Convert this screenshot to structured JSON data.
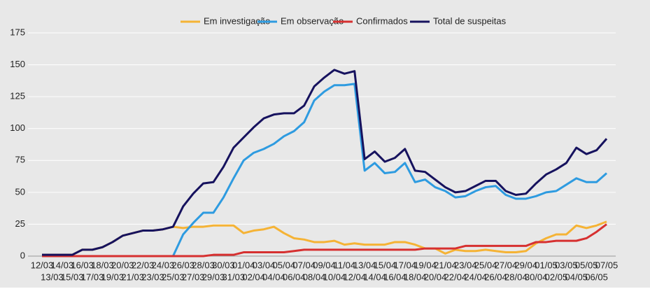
{
  "chart_data": {
    "type": "line",
    "categories": [
      "12/03",
      "13/03",
      "14/03",
      "15/03",
      "16/03",
      "17/03",
      "18/03",
      "19/03",
      "20/03",
      "21/03",
      "22/03",
      "23/03",
      "24/03",
      "25/03",
      "26/03",
      "27/03",
      "28/03",
      "29/03",
      "30/03",
      "31/03",
      "01/04",
      "02/04",
      "03/04",
      "04/04",
      "05/04",
      "06/04",
      "07/04",
      "08/04",
      "09/04",
      "10/04",
      "11/04",
      "12/04",
      "13/04",
      "14/04",
      "15/04",
      "16/04",
      "17/04",
      "18/04",
      "19/04",
      "20/04",
      "21/04",
      "22/04",
      "23/04",
      "24/04",
      "25/04",
      "26/04",
      "27/04",
      "28/04",
      "29/04",
      "30/04",
      "01/05",
      "02/05",
      "03/05",
      "04/05",
      "05/05",
      "06/05",
      "07/05"
    ],
    "series": [
      {
        "name": "Em investigação",
        "color": "#f5b335",
        "values": [
          1,
          1,
          1,
          1,
          5,
          5,
          7,
          11,
          16,
          18,
          20,
          20,
          21,
          23,
          22,
          23,
          23,
          24,
          24,
          24,
          18,
          20,
          21,
          23,
          18,
          14,
          13,
          11,
          11,
          12,
          9,
          10,
          9,
          9,
          9,
          11,
          11,
          9,
          6,
          6,
          2,
          5,
          4,
          4,
          5,
          4,
          3,
          3,
          4,
          10,
          14,
          17,
          17,
          24,
          22,
          24,
          27
        ]
      },
      {
        "name": "Em observação",
        "color": "#2e9be0",
        "values": [
          0,
          0,
          0,
          0,
          0,
          0,
          0,
          0,
          0,
          0,
          0,
          0,
          0,
          0,
          17,
          26,
          34,
          34,
          46,
          61,
          75,
          81,
          84,
          88,
          94,
          98,
          105,
          122,
          129,
          134,
          134,
          135,
          67,
          73,
          65,
          66,
          73,
          58,
          60,
          54,
          51,
          46,
          47,
          51,
          54,
          55,
          48,
          45,
          45,
          47,
          50,
          51,
          56,
          61,
          58,
          58,
          65
        ]
      },
      {
        "name": "Confirmados",
        "color": "#d63030",
        "values": [
          0,
          0,
          0,
          0,
          0,
          0,
          0,
          0,
          0,
          0,
          0,
          0,
          0,
          0,
          0,
          0,
          0,
          1,
          1,
          1,
          3,
          3,
          3,
          3,
          3,
          4,
          5,
          5,
          5,
          5,
          5,
          5,
          5,
          5,
          5,
          5,
          5,
          5,
          6,
          6,
          6,
          6,
          8,
          8,
          8,
          8,
          8,
          8,
          8,
          11,
          11,
          12,
          12,
          12,
          14,
          19,
          25
        ]
      },
      {
        "name": "Total de suspeitas",
        "color": "#16125e",
        "values": [
          1,
          1,
          1,
          1,
          5,
          5,
          7,
          11,
          16,
          18,
          20,
          20,
          21,
          23,
          39,
          49,
          57,
          58,
          70,
          85,
          93,
          101,
          108,
          111,
          112,
          112,
          118,
          133,
          140,
          146,
          143,
          145,
          76,
          82,
          74,
          77,
          84,
          67,
          66,
          60,
          54,
          50,
          51,
          55,
          59,
          59,
          51,
          48,
          49,
          57,
          64,
          68,
          73,
          85,
          80,
          83,
          92
        ]
      }
    ],
    "ylim": [
      0,
      175
    ],
    "yticks": [
      0,
      25,
      50,
      75,
      100,
      125,
      150,
      175
    ],
    "grid": true,
    "legend": "top"
  }
}
